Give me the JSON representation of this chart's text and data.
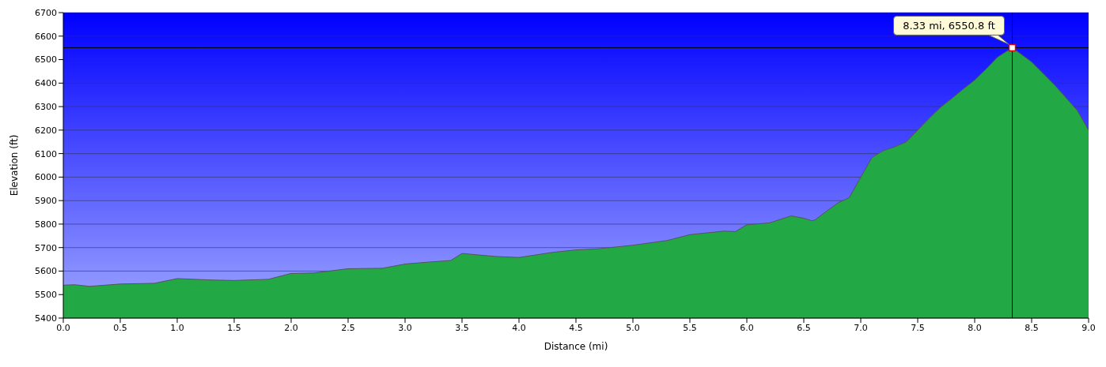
{
  "chart_data": {
    "type": "area",
    "xlabel": "Distance (mi)",
    "ylabel": "Elevation (ft)",
    "x": [
      0.0,
      0.1,
      0.23,
      0.5,
      0.8,
      1.0,
      1.3,
      1.5,
      1.8,
      2.0,
      2.2,
      2.5,
      2.8,
      3.0,
      3.2,
      3.4,
      3.5,
      3.8,
      4.0,
      4.3,
      4.5,
      4.7,
      5.0,
      5.3,
      5.5,
      5.8,
      5.9,
      6.0,
      6.2,
      6.39,
      6.5,
      6.57,
      6.6,
      6.7,
      6.8,
      6.9,
      7.0,
      7.1,
      7.2,
      7.3,
      7.4,
      7.5,
      7.6,
      7.7,
      7.8,
      7.9,
      8.0,
      8.1,
      8.2,
      8.33,
      8.5,
      8.7,
      8.9,
      9.0
    ],
    "series": [
      {
        "color": "#22a844",
        "values": [
          5540,
          5542,
          5535,
          5545,
          5548,
          5568,
          5562,
          5560,
          5565,
          5590,
          5592,
          5610,
          5612,
          5630,
          5638,
          5645,
          5675,
          5662,
          5658,
          5680,
          5690,
          5695,
          5710,
          5730,
          5755,
          5770,
          5768,
          5797,
          5805,
          5835,
          5825,
          5814,
          5818,
          5855,
          5890,
          5913,
          6000,
          6084,
          6113,
          6129,
          6150,
          6200,
          6250,
          6297,
          6335,
          6375,
          6413,
          6460,
          6510,
          6550.8,
          6490,
          6393,
          6284,
          6200
        ]
      }
    ],
    "xlim": [
      0,
      9
    ],
    "ylim": [
      5400,
      6700
    ],
    "xticks": [
      {
        "value": 0,
        "label": "0.0"
      },
      {
        "value": 0.5,
        "label": "0.5"
      },
      {
        "value": 1,
        "label": "1.0"
      },
      {
        "value": 1.5,
        "label": "1.5"
      },
      {
        "value": 2,
        "label": "2.0"
      },
      {
        "value": 2.5,
        "label": "2.5"
      },
      {
        "value": 3,
        "label": "3.0"
      },
      {
        "value": 3.5,
        "label": "3.5"
      },
      {
        "value": 4,
        "label": "4.0"
      },
      {
        "value": 4.5,
        "label": "4.5"
      },
      {
        "value": 5,
        "label": "5.0"
      },
      {
        "value": 5.5,
        "label": "5.5"
      },
      {
        "value": 6,
        "label": "6.0"
      },
      {
        "value": 6.5,
        "label": "6.5"
      },
      {
        "value": 7,
        "label": "7.0"
      },
      {
        "value": 7.5,
        "label": "7.5"
      },
      {
        "value": 8,
        "label": "8.0"
      },
      {
        "value": 8.5,
        "label": "8.5"
      },
      {
        "value": 9,
        "label": "9.0"
      }
    ],
    "yticks": [
      5400,
      5500,
      5600,
      5700,
      5800,
      5900,
      6000,
      6100,
      6200,
      6300,
      6400,
      6500,
      6600,
      6700
    ],
    "grid": "y",
    "ref_lines": [
      {
        "axis": "x",
        "value": 8.33,
        "color": "#000000"
      },
      {
        "axis": "y",
        "value": 6550.8,
        "color": "#000000"
      }
    ],
    "annotations": [
      {
        "text": "8.33 mi, 6550.8 ft",
        "x": 8.33,
        "y": 6550.8
      }
    ]
  }
}
